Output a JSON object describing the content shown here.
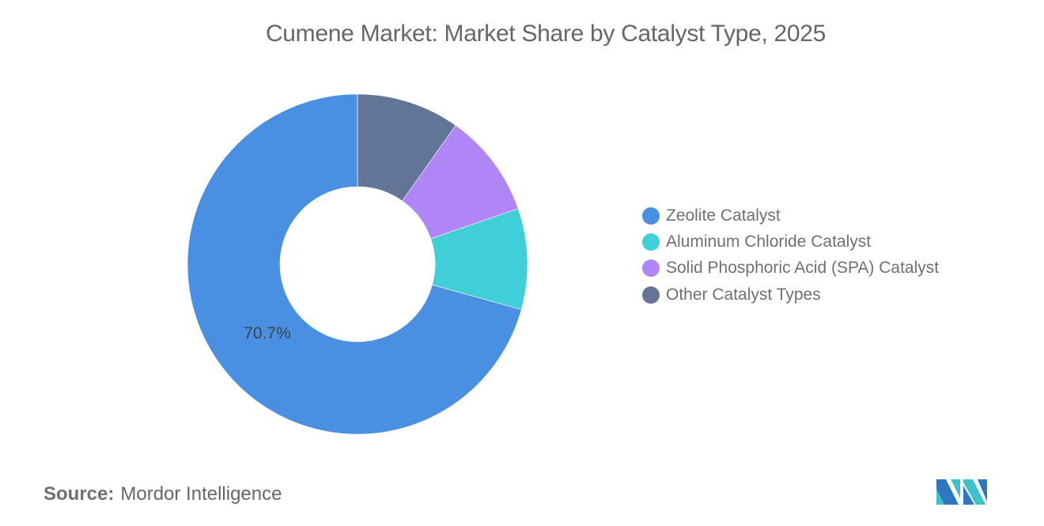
{
  "title": "Cumene Market: Market Share by Catalyst Type, 2025",
  "source": {
    "label": "Source:",
    "value": "Mordor Intelligence"
  },
  "logo": {
    "icon": "mordor-intelligence-logo-icon",
    "colors": [
      "#2E78C0",
      "#3FC1C9"
    ]
  },
  "legend": {
    "items": [
      {
        "label": "Zeolite Catalyst",
        "color": "#4A90E2"
      },
      {
        "label": "Aluminum Chloride Catalyst",
        "color": "#40CFD9"
      },
      {
        "label": "Solid Phosphoric Acid (SPA) Catalyst",
        "color": "#B085F5"
      },
      {
        "label": "Other Catalyst Types",
        "color": "#637596"
      }
    ]
  },
  "data_label": "70.7%",
  "chart_data": {
    "type": "pie",
    "variant": "donut",
    "title": "Cumene Market: Market Share by Catalyst Type, 2025",
    "categories": [
      "Zeolite Catalyst",
      "Aluminum Chloride Catalyst",
      "Solid Phosphoric Acid (SPA) Catalyst",
      "Other Catalyst Types"
    ],
    "values": [
      70.7,
      9.6,
      9.9,
      9.8
    ],
    "colors": [
      "#4A90E2",
      "#40CFD9",
      "#B085F5",
      "#637596"
    ],
    "unit": "%",
    "data_labels": [
      {
        "category": "Zeolite Catalyst",
        "text": "70.7%"
      }
    ],
    "legend_position": "right",
    "source": "Mordor Intelligence"
  }
}
